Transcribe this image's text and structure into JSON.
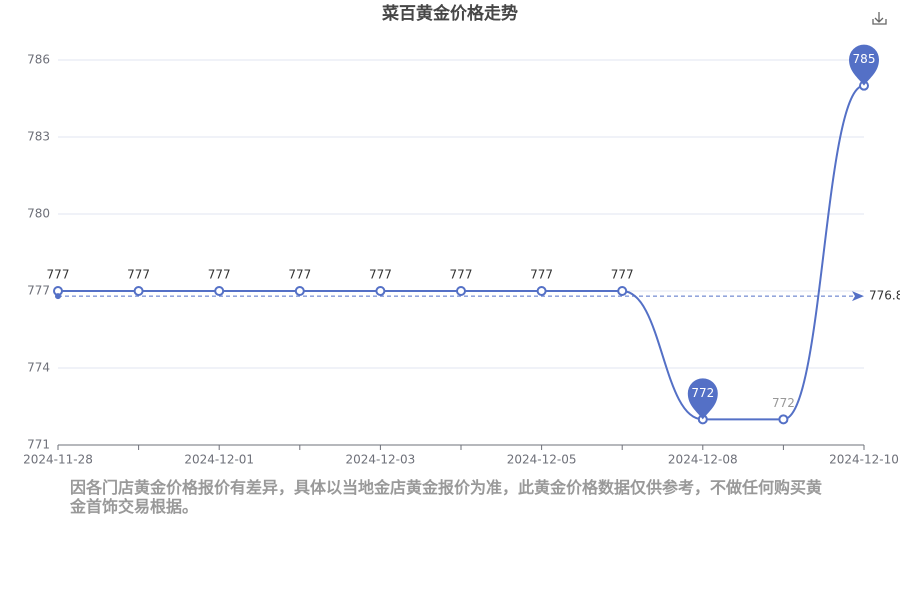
{
  "chart_data": {
    "type": "line",
    "title": "菜百黄金价格走势",
    "categories": [
      "2024-11-28",
      null,
      "2024-12-01",
      null,
      "2024-12-03",
      null,
      "2024-12-05",
      null,
      "2024-12-08",
      null,
      "2024-12-10"
    ],
    "series": [
      {
        "color": "#5470c6",
        "values": [
          777,
          777,
          777,
          777,
          777,
          777,
          777,
          777,
          772,
          772,
          785
        ]
      }
    ],
    "average": 776.8,
    "ylim": [
      771,
      786
    ],
    "yticks": [
      771,
      774,
      777,
      780,
      783,
      786
    ],
    "grid": true
  },
  "footer": "因各门店黄金价格报价有差异，具体以当地金店黄金报价为准，此黄金价格数据仅供参考，不做任何购买黄金首饰交易根据。"
}
